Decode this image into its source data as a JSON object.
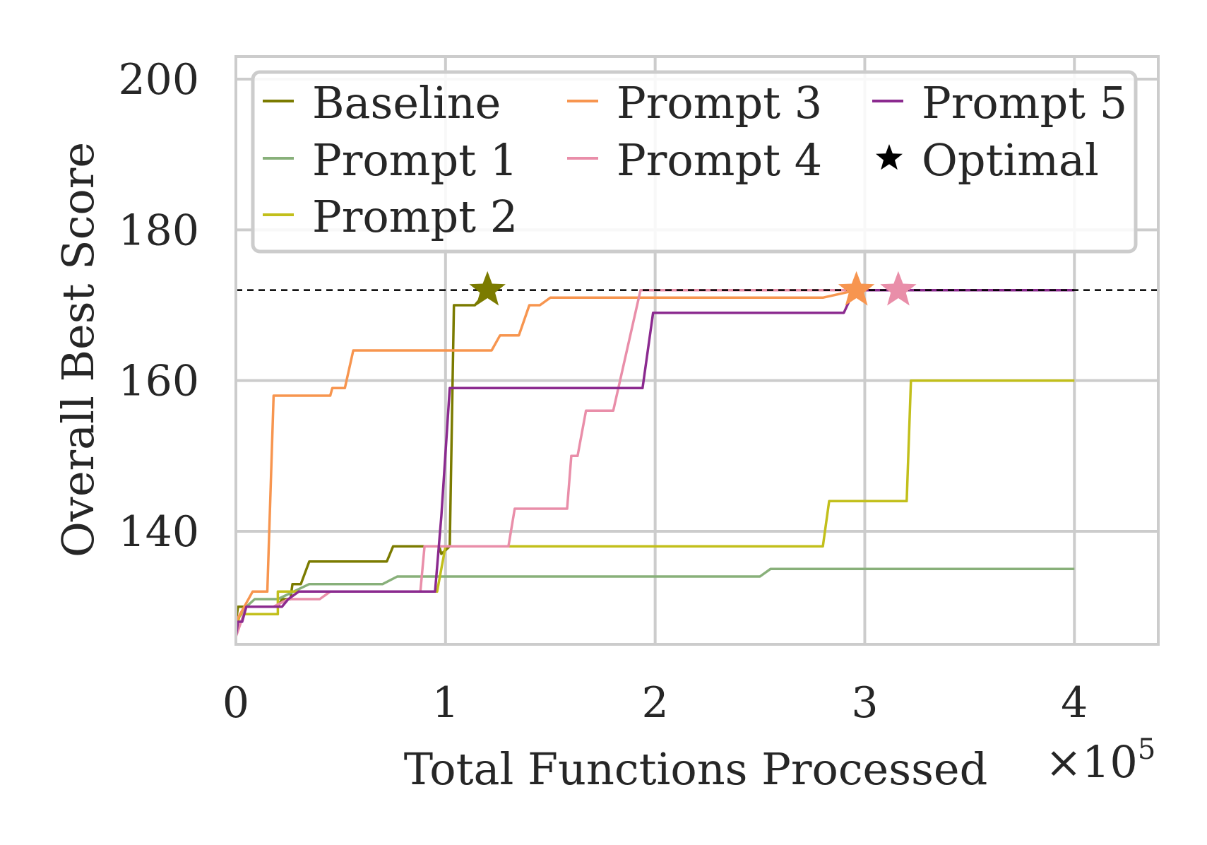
{
  "chart_data": {
    "type": "line",
    "xlabel": "Total Functions Processed",
    "x_multiplier": "×10",
    "x_multiplier_exp": "5",
    "ylabel": "Overall Best Score",
    "xlim": [
      0,
      4.4
    ],
    "ylim": [
      125,
      203
    ],
    "xticks": [
      0,
      1,
      2,
      3,
      4
    ],
    "xtick_labels": [
      "0",
      "1",
      "2",
      "3",
      "4"
    ],
    "yticks": [
      140,
      160,
      180,
      200
    ],
    "ytick_labels": [
      "140",
      "160",
      "180",
      "200"
    ],
    "grid": true,
    "legend_position": "top",
    "optimal_line": 172,
    "series": [
      {
        "name": "Baseline",
        "color": "#7b7b00",
        "points": [
          [
            0,
            128
          ],
          [
            0.01,
            130
          ],
          [
            0.2,
            130
          ],
          [
            0.22,
            131
          ],
          [
            0.26,
            131
          ],
          [
            0.27,
            133
          ],
          [
            0.31,
            133
          ],
          [
            0.35,
            136
          ],
          [
            0.72,
            136
          ],
          [
            0.75,
            138
          ],
          [
            0.97,
            138
          ],
          [
            0.98,
            137
          ],
          [
            1.02,
            138
          ],
          [
            1.04,
            170
          ],
          [
            1.14,
            170
          ],
          [
            1.2,
            172
          ]
        ]
      },
      {
        "name": "Prompt 1",
        "color": "#88b07a",
        "points": [
          [
            0,
            128
          ],
          [
            0.05,
            130
          ],
          [
            0.09,
            131
          ],
          [
            0.2,
            131
          ],
          [
            0.35,
            133
          ],
          [
            0.7,
            133
          ],
          [
            0.77,
            134
          ],
          [
            2.5,
            134
          ],
          [
            2.55,
            135
          ],
          [
            4.0,
            135
          ]
        ]
      },
      {
        "name": "Prompt 2",
        "color": "#c2bf1b",
        "points": [
          [
            0,
            127
          ],
          [
            0.02,
            129
          ],
          [
            0.2,
            129
          ],
          [
            0.2,
            132
          ],
          [
            0.4,
            132
          ],
          [
            0.9,
            132
          ],
          [
            0.96,
            132
          ],
          [
            1.0,
            138
          ],
          [
            2.8,
            138
          ],
          [
            2.83,
            144
          ],
          [
            3.2,
            144
          ],
          [
            3.22,
            160
          ],
          [
            4.0,
            160
          ]
        ]
      },
      {
        "name": "Prompt 3",
        "color": "#f7954f",
        "points": [
          [
            0,
            128
          ],
          [
            0.04,
            130
          ],
          [
            0.08,
            132
          ],
          [
            0.15,
            132
          ],
          [
            0.18,
            158
          ],
          [
            0.45,
            158
          ],
          [
            0.46,
            159
          ],
          [
            0.52,
            159
          ],
          [
            0.56,
            164
          ],
          [
            1.22,
            164
          ],
          [
            1.26,
            166
          ],
          [
            1.35,
            166
          ],
          [
            1.4,
            170
          ],
          [
            1.45,
            170
          ],
          [
            1.5,
            171
          ],
          [
            2.8,
            171
          ],
          [
            2.96,
            172
          ]
        ]
      },
      {
        "name": "Prompt 4",
        "color": "#e98ea9",
        "points": [
          [
            0,
            126
          ],
          [
            0.05,
            130
          ],
          [
            0.18,
            130
          ],
          [
            0.25,
            131
          ],
          [
            0.4,
            131
          ],
          [
            0.45,
            132
          ],
          [
            0.88,
            132
          ],
          [
            0.9,
            138
          ],
          [
            1.3,
            138
          ],
          [
            1.33,
            143
          ],
          [
            1.58,
            143
          ],
          [
            1.6,
            150
          ],
          [
            1.63,
            150
          ],
          [
            1.67,
            156
          ],
          [
            1.8,
            156
          ],
          [
            1.93,
            172
          ],
          [
            3.16,
            172
          ]
        ]
      },
      {
        "name": "Prompt 5",
        "color": "#8b2a8f",
        "points": [
          [
            0,
            126
          ],
          [
            0.01,
            128
          ],
          [
            0.03,
            128
          ],
          [
            0.05,
            130
          ],
          [
            0.22,
            130
          ],
          [
            0.25,
            131
          ],
          [
            0.3,
            132
          ],
          [
            0.95,
            132
          ],
          [
            0.98,
            142
          ],
          [
            1.02,
            159
          ],
          [
            1.94,
            159
          ],
          [
            1.99,
            169
          ],
          [
            2.9,
            169
          ],
          [
            2.95,
            172
          ],
          [
            4.0,
            172
          ]
        ]
      }
    ],
    "optimal_markers": [
      {
        "series": "Baseline",
        "x": 1.2,
        "y": 172,
        "color": "#7b7b00"
      },
      {
        "series": "Prompt 3",
        "x": 2.96,
        "y": 172,
        "color": "#f7954f"
      },
      {
        "series": "Prompt 4",
        "x": 3.16,
        "y": 172,
        "color": "#e98ea9"
      }
    ],
    "legend": [
      {
        "label": "Baseline",
        "type": "line",
        "color": "#7b7b00"
      },
      {
        "label": "Prompt 1",
        "type": "line",
        "color": "#88b07a"
      },
      {
        "label": "Prompt 2",
        "type": "line",
        "color": "#c2bf1b"
      },
      {
        "label": "Prompt 3",
        "type": "line",
        "color": "#f7954f"
      },
      {
        "label": "Prompt 4",
        "type": "line",
        "color": "#e98ea9"
      },
      {
        "label": "Prompt 5",
        "type": "line",
        "color": "#8b2a8f"
      },
      {
        "label": "Optimal",
        "type": "star",
        "color": "#000000"
      }
    ]
  }
}
